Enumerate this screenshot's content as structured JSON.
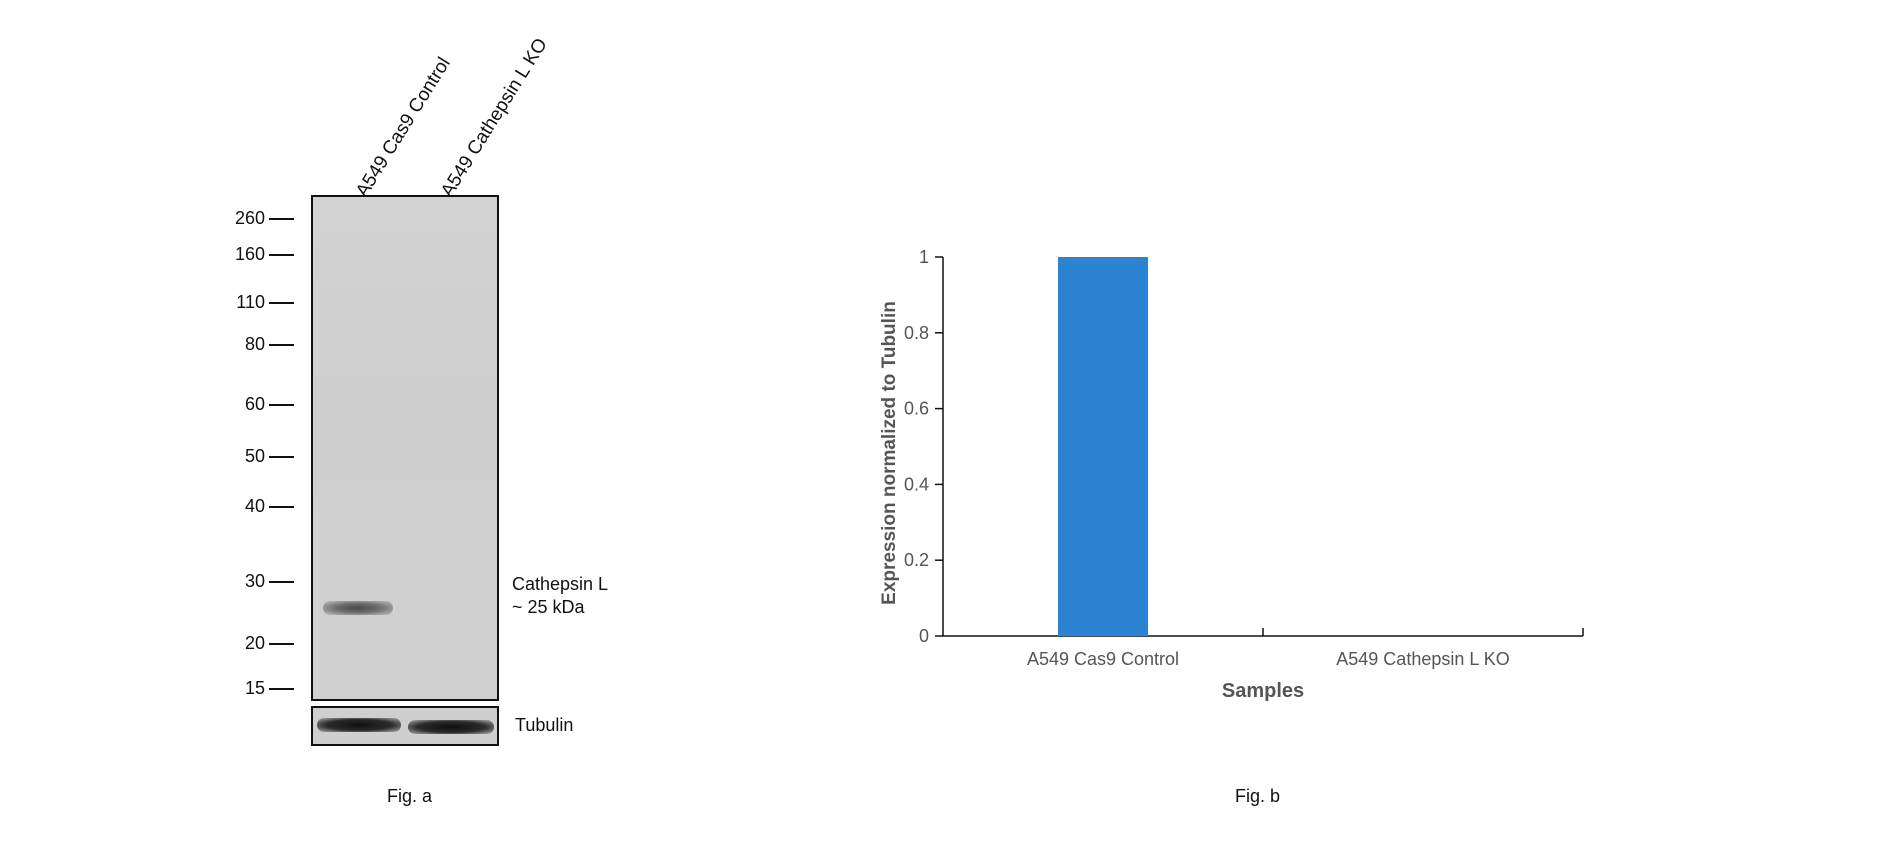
{
  "figure_a": {
    "lanes": [
      "A549 Cas9 Control",
      "A549 Cathepsin L KO"
    ],
    "markers": [
      "260",
      "160",
      "110",
      "80",
      "60",
      "50",
      "40",
      "30",
      "20",
      "15"
    ],
    "target_label": "Cathepsin L",
    "target_size": "~ 25 kDa",
    "loading_label": "Tubulin",
    "caption": "Fig. a"
  },
  "figure_b": {
    "caption": "Fig. b"
  },
  "chart_data": {
    "type": "bar",
    "categories": [
      "A549 Cas9 Control",
      "A549 Cathepsin L KO"
    ],
    "values": [
      1,
      0
    ],
    "xlabel": "Samples",
    "ylabel": "Expression normalized to Tubulin",
    "ylim": [
      0,
      1
    ],
    "yticks": [
      "0",
      "0.2",
      "0.4",
      "0.6",
      "0.8",
      "1"
    ],
    "bar_color": "#2b83d2",
    "grid": false,
    "legend": "none"
  }
}
